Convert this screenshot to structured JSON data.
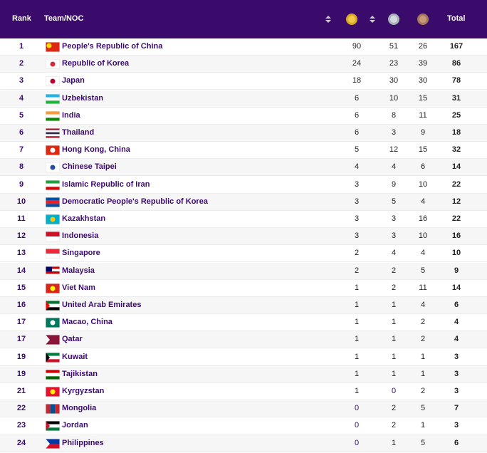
{
  "header": {
    "rank": "Rank",
    "team": "Team/NOC",
    "total": "Total"
  },
  "table": {
    "rows": [
      [
        1,
        "People's Republic of China",
        90,
        51,
        26,
        167
      ],
      [
        2,
        "Republic of Korea",
        24,
        23,
        39,
        86
      ],
      [
        3,
        "Japan",
        18,
        30,
        30,
        78
      ],
      [
        4,
        "Uzbekistan",
        6,
        10,
        15,
        31
      ],
      [
        5,
        "India",
        6,
        8,
        11,
        25
      ],
      [
        6,
        "Thailand",
        6,
        3,
        9,
        18
      ],
      [
        7,
        "Hong Kong, China",
        5,
        12,
        15,
        32
      ],
      [
        8,
        "Chinese Taipei",
        4,
        4,
        6,
        14
      ],
      [
        9,
        "Islamic Republic of Iran",
        3,
        9,
        10,
        22
      ],
      [
        10,
        "Democratic People's Republic of Korea",
        3,
        5,
        4,
        12
      ],
      [
        11,
        "Kazakhstan",
        3,
        3,
        16,
        22
      ],
      [
        12,
        "Indonesia",
        3,
        3,
        10,
        16
      ],
      [
        13,
        "Singapore",
        2,
        4,
        4,
        10
      ],
      [
        14,
        "Malaysia",
        2,
        2,
        5,
        9
      ],
      [
        15,
        "Viet Nam",
        1,
        2,
        11,
        14
      ],
      [
        16,
        "United Arab Emirates",
        1,
        1,
        4,
        6
      ],
      [
        17,
        "Macao, China",
        1,
        1,
        2,
        4
      ],
      [
        17,
        "Qatar",
        1,
        1,
        2,
        4
      ],
      [
        19,
        "Kuwait",
        1,
        1,
        1,
        3
      ],
      [
        19,
        "Tajikistan",
        1,
        1,
        1,
        3
      ],
      [
        21,
        "Kyrgyzstan",
        1,
        0,
        2,
        3
      ],
      [
        22,
        "Mongolia",
        0,
        2,
        5,
        7
      ],
      [
        23,
        "Jordan",
        0,
        2,
        1,
        3
      ],
      [
        24,
        "Philippines",
        0,
        1,
        5,
        6
      ]
    ]
  }
}
